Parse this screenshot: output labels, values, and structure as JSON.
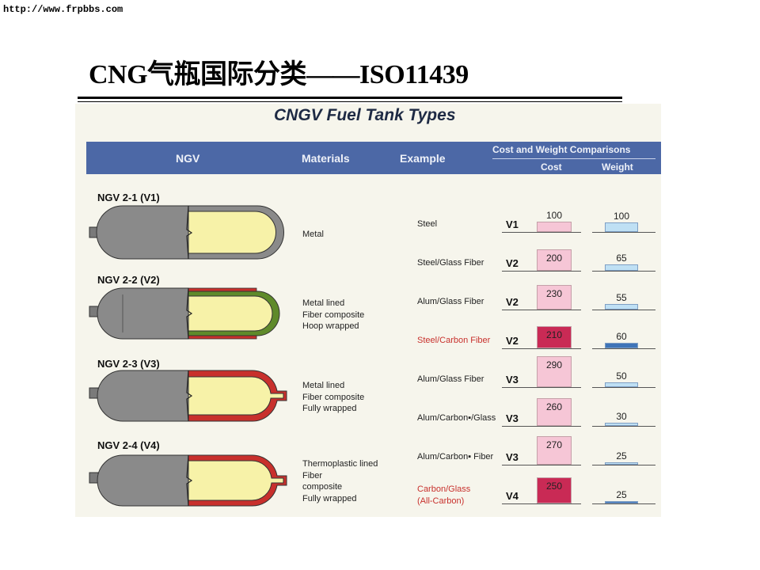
{
  "url": "http://www.frpbbs.com",
  "title": "CNG气瓶国际分类——ISO11439",
  "panel_title": "CNGV Fuel Tank Types",
  "header": {
    "ngv": "NGV",
    "materials": "Materials",
    "example": "Example",
    "comparison": "Cost and Weight Comparisons",
    "cost": "Cost",
    "weight": "Weight"
  },
  "tank_types": [
    {
      "label": "NGV  2-1 (V1)",
      "materials": [
        "Metal"
      ]
    },
    {
      "label": "NGV  2-2 (V2)",
      "materials": [
        "Metal lined",
        "Fiber composite",
        "Hoop wrapped"
      ]
    },
    {
      "label": "NGV  2-3 (V3)",
      "materials": [
        "Metal lined",
        "Fiber composite",
        "Fully wrapped"
      ]
    },
    {
      "label": "NGV  2-4 (V4)",
      "materials": [
        "Thermoplastic lined",
        "Fiber",
        "composite",
        "Fully wrapped"
      ]
    }
  ],
  "examples": [
    {
      "name": [
        "Steel"
      ],
      "version": "V1",
      "cost": 100,
      "weight": 100,
      "highlight": false
    },
    {
      "name": [
        "Steel/Glass Fiber"
      ],
      "version": "V2",
      "cost": 200,
      "weight": 65,
      "highlight": false
    },
    {
      "name": [
        "Alum/Glass Fiber"
      ],
      "version": "V2",
      "cost": 230,
      "weight": 55,
      "highlight": false
    },
    {
      "name": [
        "Steel/Carbon Fiber"
      ],
      "version": "V2",
      "cost": 210,
      "weight": 60,
      "highlight": true
    },
    {
      "name": [
        "Alum/Glass Fiber"
      ],
      "version": "V3",
      "cost": 290,
      "weight": 50,
      "highlight": false
    },
    {
      "name": [
        "Alum/Carbon▪/Glass"
      ],
      "version": "V3",
      "cost": 260,
      "weight": 30,
      "highlight": false
    },
    {
      "name": [
        "Alum/Carbon▪ Fiber"
      ],
      "version": "V3",
      "cost": 270,
      "weight": 25,
      "highlight": false
    },
    {
      "name": [
        "Carbon/Glass",
        "(All-Carbon)"
      ],
      "version": "V4",
      "cost": 250,
      "weight": 25,
      "highlight": true
    }
  ],
  "colors": {
    "cost_light": "#f6c6d6",
    "cost_dark": "#c92a55",
    "weight_light": "#bfe0f4",
    "weight_dark": "#3f74b8",
    "header_band": "#4c68a6",
    "liner": "#f7f2a8",
    "tank_gray": "#8a8a8a",
    "hoop_green": "#5f8a2a",
    "wrap_red": "#c8302c"
  }
}
